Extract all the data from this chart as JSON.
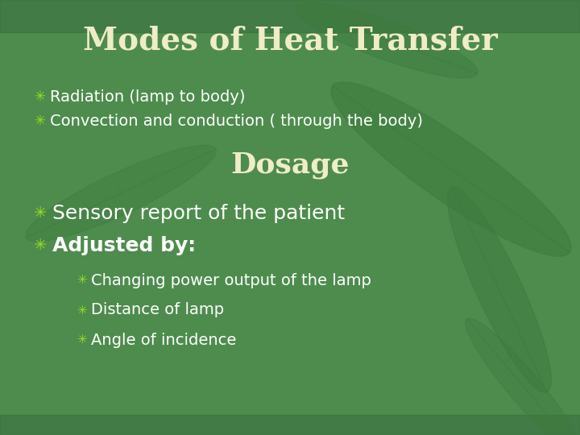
{
  "title": "Modes of Heat Transfer",
  "title_color": "#f0ecc8",
  "title_fontsize": 28,
  "title_fontfamily": "serif",
  "bg_color": "#4e8c4e",
  "bullet_color": "#99dd22",
  "text_color": "#ffffff",
  "dosage_color": "#f0ecc8",
  "bullet1": "Radiation (lamp to body)",
  "bullet2": "Convection and conduction ( through the body)",
  "dosage_title": "Dosage",
  "dosage_fontsize": 26,
  "sub_bullet1": "Sensory report of the patient",
  "sub_bullet2": "Adjusted by:",
  "sub_sub_bullet1": "Changing power output of the lamp",
  "sub_sub_bullet2": "Distance of lamp",
  "sub_sub_bullet3": "Angle of incidence",
  "main_bullet_fontsize": 14,
  "sub_bullet_fontsize": 18,
  "sub_sub_bullet_fontsize": 14,
  "bullet_icon_main": 12,
  "bullet_icon_sub": 14,
  "bullet_icon_subsub": 11
}
